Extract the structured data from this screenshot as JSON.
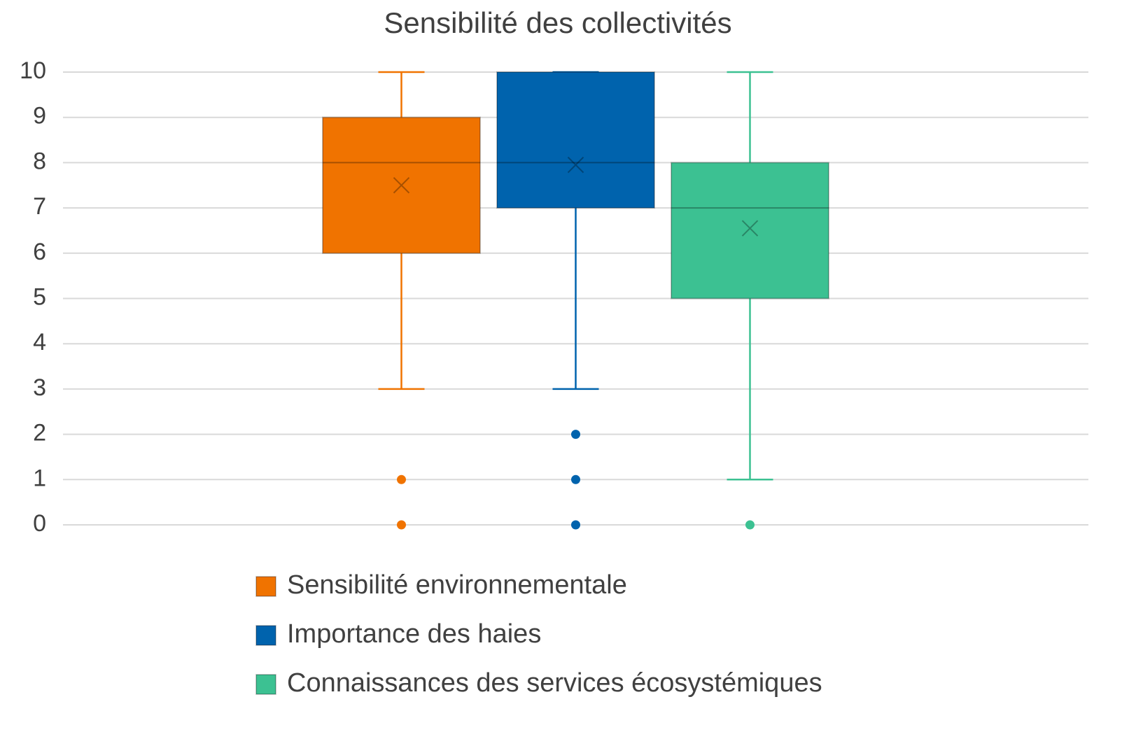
{
  "chart_data": {
    "type": "box",
    "title": "Sensibilité des collectivités",
    "ylim": [
      0,
      10
    ],
    "yticks": [
      0,
      1,
      2,
      3,
      4,
      5,
      6,
      7,
      8,
      9,
      10
    ],
    "grid": true,
    "legend": "bottom",
    "series": [
      {
        "name": "Sensibilité environnementale",
        "color": "#f07300",
        "whisker_low": 3,
        "q1": 6,
        "median": 8,
        "q3": 9,
        "whisker_high": 10,
        "mean": 7.5,
        "outliers": [
          1,
          0
        ]
      },
      {
        "name": "Importance des haies",
        "color": "#0063ad",
        "whisker_low": 3,
        "q1": 7,
        "median": 8,
        "q3": 10,
        "whisker_high": 10,
        "mean": 7.95,
        "outliers": [
          2,
          1,
          0
        ]
      },
      {
        "name": "Connaissances des services écosystémiques",
        "color": "#3cc192",
        "whisker_low": 1,
        "q1": 5,
        "median": 7,
        "q3": 8,
        "whisker_high": 10,
        "mean": 6.55,
        "outliers": [
          0
        ]
      }
    ]
  }
}
